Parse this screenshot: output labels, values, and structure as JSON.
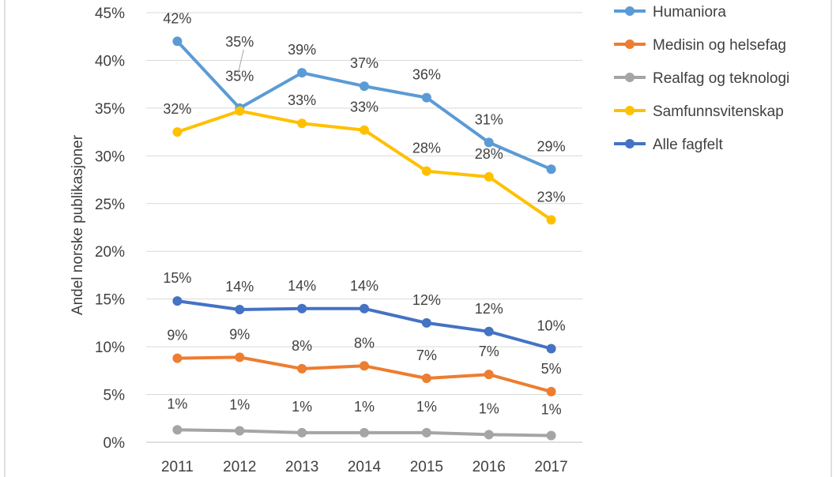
{
  "chart_data": {
    "type": "line",
    "ylabel": "Andel norske publikasjoner",
    "xlabel": "",
    "x": [
      "2011",
      "2012",
      "2013",
      "2014",
      "2015",
      "2016",
      "2017"
    ],
    "yticks": [
      "0%",
      "5%",
      "10%",
      "15%",
      "20%",
      "25%",
      "30%",
      "35%",
      "40%",
      "45%"
    ],
    "ylim": [
      0,
      45
    ],
    "grid": true,
    "legend_position": "right",
    "series": [
      {
        "name": "Humaniora",
        "color": "#5B9BD5",
        "values": [
          42,
          35,
          38.7,
          37.3,
          36.1,
          31.4,
          28.6
        ],
        "labels": [
          "42%",
          "35%",
          "39%",
          "37%",
          "36%",
          "31%",
          "29%"
        ]
      },
      {
        "name": "Medisin og helsefag",
        "color": "#ED7D31",
        "values": [
          8.8,
          8.9,
          7.7,
          8.0,
          6.7,
          7.1,
          5.3
        ],
        "labels": [
          "9%",
          "9%",
          "8%",
          "8%",
          "7%",
          "7%",
          "5%"
        ]
      },
      {
        "name": "Realfag og teknologi",
        "color": "#A5A5A5",
        "values": [
          1.3,
          1.2,
          1.0,
          1.0,
          1.0,
          0.8,
          0.7
        ],
        "labels": [
          "1%",
          "1%",
          "1%",
          "1%",
          "1%",
          "1%",
          "1%"
        ]
      },
      {
        "name": "Samfunnsvitenskap",
        "color": "#FFC000",
        "values": [
          32.5,
          34.7,
          33.4,
          32.7,
          28.4,
          27.8,
          23.3
        ],
        "labels": [
          "32%",
          "35%",
          "33%",
          "33%",
          "28%",
          "28%",
          "23%"
        ]
      },
      {
        "name": "Alle fagfelt",
        "color": "#4472C4",
        "values": [
          14.8,
          13.9,
          14.0,
          14.0,
          12.5,
          11.6,
          9.8
        ],
        "labels": [
          "15%",
          "14%",
          "14%",
          "14%",
          "12%",
          "12%",
          "10%"
        ]
      }
    ]
  }
}
